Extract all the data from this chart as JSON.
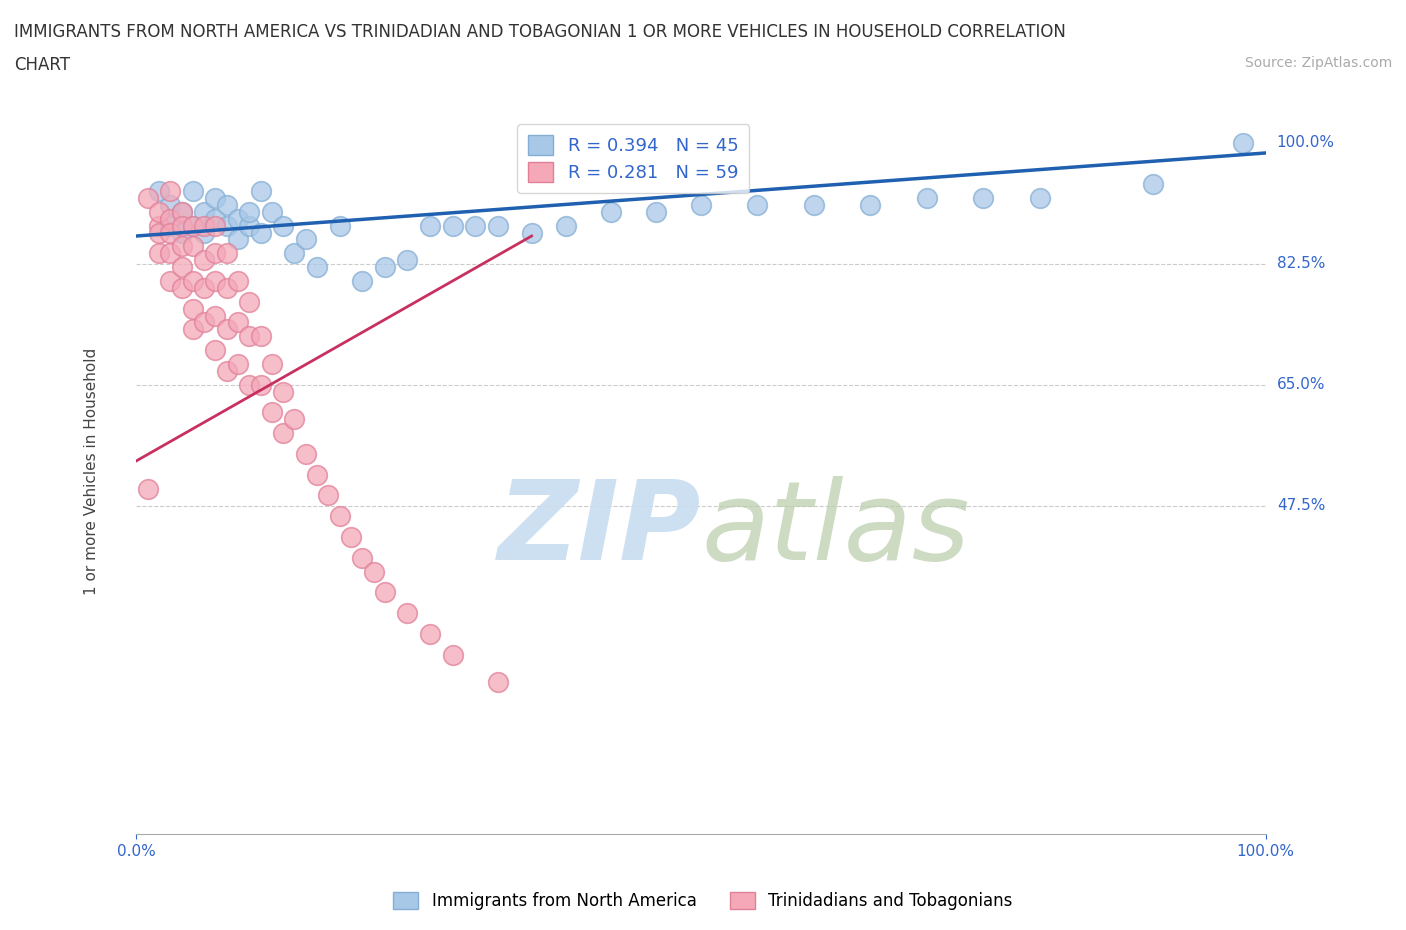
{
  "title_line1": "IMMIGRANTS FROM NORTH AMERICA VS TRINIDADIAN AND TOBAGONIAN 1 OR MORE VEHICLES IN HOUSEHOLD CORRELATION",
  "title_line2": "CHART",
  "source": "Source: ZipAtlas.com",
  "ylabel": "1 or more Vehicles in Household",
  "xlim": [
    0.0,
    1.0
  ],
  "ylim": [
    0.0,
    1.05
  ],
  "ytick_positions": [
    0.475,
    0.65,
    0.825,
    1.0
  ],
  "ytick_labels": [
    "47.5%",
    "65.0%",
    "82.5%",
    "100.0%"
  ],
  "xtick_positions": [
    0.0,
    1.0
  ],
  "xtick_labels": [
    "0.0%",
    "100.0%"
  ],
  "legend_blue_label": "Immigrants from North America",
  "legend_pink_label": "Trinidadians and Tobagonians",
  "blue_R": 0.394,
  "blue_N": 45,
  "pink_R": 0.281,
  "pink_N": 59,
  "blue_color": "#a8c8e8",
  "blue_edge_color": "#85aed4",
  "blue_line_color": "#2060b0",
  "pink_color": "#f4a8b8",
  "pink_edge_color": "#e08098",
  "pink_line_color": "#c83060",
  "grid_color": "#cccccc",
  "axis_label_color": "#3366cc",
  "watermark_zip_color": "#c8ddf0",
  "watermark_atlas_color": "#b8ccaa",
  "blue_scatter_x": [
    0.02,
    0.03,
    0.03,
    0.04,
    0.04,
    0.05,
    0.05,
    0.06,
    0.06,
    0.07,
    0.07,
    0.08,
    0.08,
    0.09,
    0.09,
    0.1,
    0.1,
    0.11,
    0.11,
    0.12,
    0.13,
    0.14,
    0.15,
    0.16,
    0.18,
    0.2,
    0.22,
    0.24,
    0.26,
    0.28,
    0.3,
    0.32,
    0.35,
    0.38,
    0.42,
    0.46,
    0.5,
    0.55,
    0.6,
    0.65,
    0.7,
    0.75,
    0.8,
    0.9,
    0.98
  ],
  "blue_scatter_y": [
    0.93,
    0.91,
    0.88,
    0.9,
    0.87,
    0.88,
    0.93,
    0.9,
    0.87,
    0.92,
    0.89,
    0.88,
    0.91,
    0.89,
    0.86,
    0.88,
    0.9,
    0.93,
    0.87,
    0.9,
    0.88,
    0.84,
    0.86,
    0.82,
    0.88,
    0.8,
    0.82,
    0.83,
    0.88,
    0.88,
    0.88,
    0.88,
    0.87,
    0.88,
    0.9,
    0.9,
    0.91,
    0.91,
    0.91,
    0.91,
    0.92,
    0.92,
    0.92,
    0.94,
    1.0
  ],
  "pink_scatter_x": [
    0.01,
    0.01,
    0.02,
    0.02,
    0.02,
    0.02,
    0.03,
    0.03,
    0.03,
    0.03,
    0.03,
    0.04,
    0.04,
    0.04,
    0.04,
    0.04,
    0.05,
    0.05,
    0.05,
    0.05,
    0.05,
    0.06,
    0.06,
    0.06,
    0.06,
    0.07,
    0.07,
    0.07,
    0.07,
    0.07,
    0.08,
    0.08,
    0.08,
    0.08,
    0.09,
    0.09,
    0.09,
    0.1,
    0.1,
    0.1,
    0.11,
    0.11,
    0.12,
    0.12,
    0.13,
    0.13,
    0.14,
    0.15,
    0.16,
    0.17,
    0.18,
    0.19,
    0.2,
    0.21,
    0.22,
    0.24,
    0.26,
    0.28,
    0.32
  ],
  "pink_scatter_y": [
    0.92,
    0.5,
    0.88,
    0.9,
    0.87,
    0.84,
    0.89,
    0.87,
    0.84,
    0.8,
    0.93,
    0.9,
    0.88,
    0.85,
    0.82,
    0.79,
    0.88,
    0.85,
    0.8,
    0.76,
    0.73,
    0.88,
    0.83,
    0.79,
    0.74,
    0.88,
    0.84,
    0.8,
    0.75,
    0.7,
    0.84,
    0.79,
    0.73,
    0.67,
    0.8,
    0.74,
    0.68,
    0.77,
    0.72,
    0.65,
    0.72,
    0.65,
    0.68,
    0.61,
    0.64,
    0.58,
    0.6,
    0.55,
    0.52,
    0.49,
    0.46,
    0.43,
    0.4,
    0.38,
    0.35,
    0.32,
    0.29,
    0.26,
    0.22
  ],
  "blue_trendline_x0": 0.0,
  "blue_trendline_y0": 0.865,
  "blue_trendline_x1": 1.0,
  "blue_trendline_y1": 0.985,
  "pink_trendline_x0": 0.0,
  "pink_trendline_y0": 0.54,
  "pink_trendline_x1": 0.35,
  "pink_trendline_y1": 0.865
}
